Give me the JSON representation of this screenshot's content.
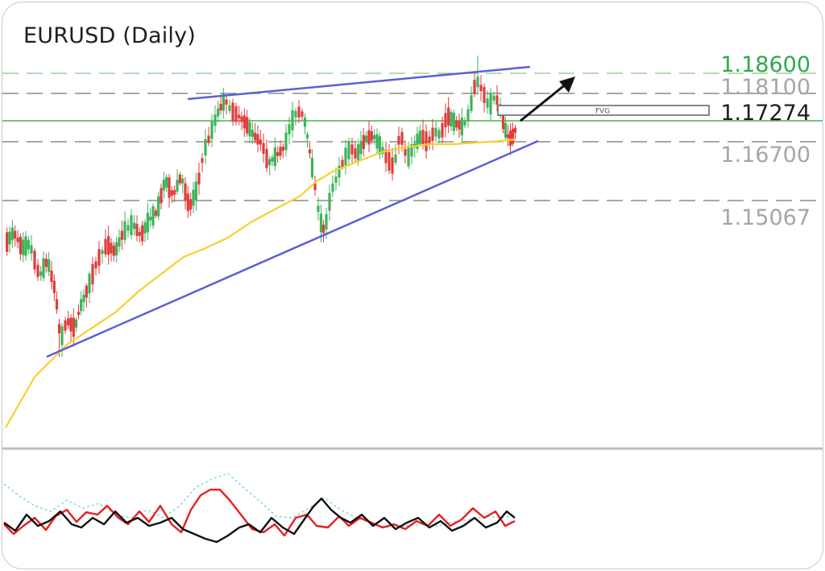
{
  "title": "EURUSD (Daily)",
  "chart_data": {
    "type": "candlestick",
    "symbol": "EURUSD",
    "timeframe": "Daily",
    "ylim": [
      1.105,
      1.195
    ],
    "levels": [
      {
        "label": "1.18600",
        "value": 1.186,
        "style": "dashed",
        "color": "#2fa84f",
        "line_color": "#9ccf9c"
      },
      {
        "label": "1.18100",
        "value": 1.181,
        "style": "dashed",
        "color": "#a6a6a6",
        "line_color": "#8c8c8c"
      },
      {
        "label": "1.17274",
        "value": 1.17274,
        "style": "solid",
        "color": "#1e1e1e",
        "line_color": "#4caf50"
      },
      {
        "label": "1.16700",
        "value": 1.167,
        "style": "dashed",
        "color": "#a6a6a6",
        "line_color": "#8c8c8c"
      },
      {
        "label": "1.15067",
        "value": 1.15067,
        "style": "dashed",
        "color": "#a6a6a6",
        "line_color": "#8c8c8c"
      }
    ],
    "fvg": {
      "label": "FVG",
      "top": 1.175,
      "bottom": 1.1738
    },
    "trendlines": [
      {
        "name": "upper-channel",
        "color": "#5b5fd6"
      },
      {
        "name": "lower-channel",
        "color": "#5b5fd6"
      }
    ],
    "moving_average_color": "#f5d130",
    "arrow": {
      "direction": "up",
      "color": "#111111"
    },
    "colors": {
      "bull": "#3cb45a",
      "bear": "#e23b3b"
    },
    "oscillator": {
      "series": [
        {
          "color": "#e62020"
        },
        {
          "color": "#111111"
        },
        {
          "color": "#7fd6d6",
          "style": "dotted"
        }
      ]
    }
  }
}
